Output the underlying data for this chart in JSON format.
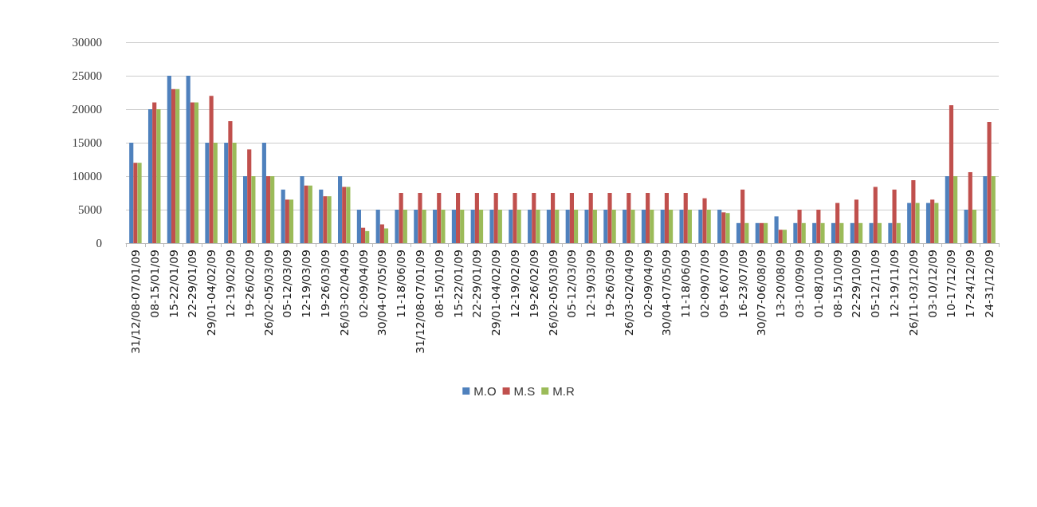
{
  "chart_data": {
    "type": "bar",
    "categories": [
      "31/12/08-07/01/09",
      "08-15/01/09",
      "15-22/01/09",
      "22-29/01/09",
      "29/01-04/02/09",
      "12-19/02/09",
      "19-26/02/09",
      "26/02-05/03/09",
      "05-12/03/09",
      "12-19/03/09",
      "19-26/03/09",
      "26/03-02/04/09",
      "02-09/04/09",
      "30/04-07/05/09",
      "11-18/06/09",
      "31/12/08-07/01/09",
      "08-15/01/09",
      "15-22/01/09",
      "22-29/01/09",
      "29/01-04/02/09",
      "12-19/02/09",
      "19-26/02/09",
      "26/02-05/03/09",
      "05-12/03/09",
      "12-19/03/09",
      "19-26/03/09",
      "26/03-02/04/09",
      "02-09/04/09",
      "30/04-07/05/09",
      "11-18/06/09",
      "02-09/07/09",
      "09-16/07/09",
      "16-23/07/09",
      "30/07-06/08/09",
      "13-20/08/09",
      "03-10/09/09",
      "01-08/10/09",
      "08-15/10/09",
      "22-29/10/09",
      "05-12/11/09",
      "12-19/11/09",
      "26/11-03/12/09",
      "03-10/12/09",
      "10-17/12/09",
      "17-24/12/09",
      "24-31/12/09"
    ],
    "series": [
      {
        "name": "M.O",
        "color": "#4f81bd",
        "values": [
          15000,
          20000,
          25000,
          25000,
          15000,
          15000,
          10000,
          15000,
          8000,
          10000,
          8000,
          10000,
          5000,
          5000,
          5000,
          5000,
          5000,
          5000,
          5000,
          5000,
          5000,
          5000,
          5000,
          5000,
          5000,
          5000,
          5000,
          5000,
          5000,
          5000,
          5000,
          5000,
          3000,
          3000,
          4000,
          3000,
          3000,
          3000,
          3000,
          3000,
          3000,
          6000,
          6000,
          10000,
          5000,
          10000
        ]
      },
      {
        "name": "M.S",
        "color": "#c0504d",
        "values": [
          12000,
          21000,
          23000,
          21000,
          22000,
          18200,
          14000,
          10000,
          6500,
          8600,
          7000,
          8400,
          2300,
          2800,
          7500,
          7500,
          7500,
          7500,
          7500,
          7500,
          7500,
          7500,
          7500,
          7500,
          7500,
          7500,
          7500,
          7500,
          7500,
          7500,
          6700,
          4600,
          8000,
          3000,
          2000,
          5000,
          5000,
          6000,
          6500,
          8400,
          8000,
          9400,
          6500,
          20600,
          10600,
          18100
        ]
      },
      {
        "name": "M.R",
        "color": "#9bbb59",
        "values": [
          12000,
          20000,
          23000,
          21000,
          15000,
          15000,
          10000,
          10000,
          6500,
          8600,
          7000,
          8400,
          1800,
          2200,
          5000,
          5000,
          5000,
          5000,
          5000,
          5000,
          5000,
          5000,
          5000,
          5000,
          5000,
          5000,
          5000,
          5000,
          5000,
          5000,
          5000,
          4500,
          3000,
          3000,
          2000,
          3000,
          3000,
          3000,
          3000,
          3000,
          3000,
          6000,
          6000,
          10000,
          5000,
          10000
        ]
      }
    ],
    "ylim": [
      0,
      30000
    ],
    "yticks": [
      0,
      5000,
      10000,
      15000,
      20000,
      25000,
      30000
    ],
    "grid": "y",
    "legend": "bottom"
  }
}
